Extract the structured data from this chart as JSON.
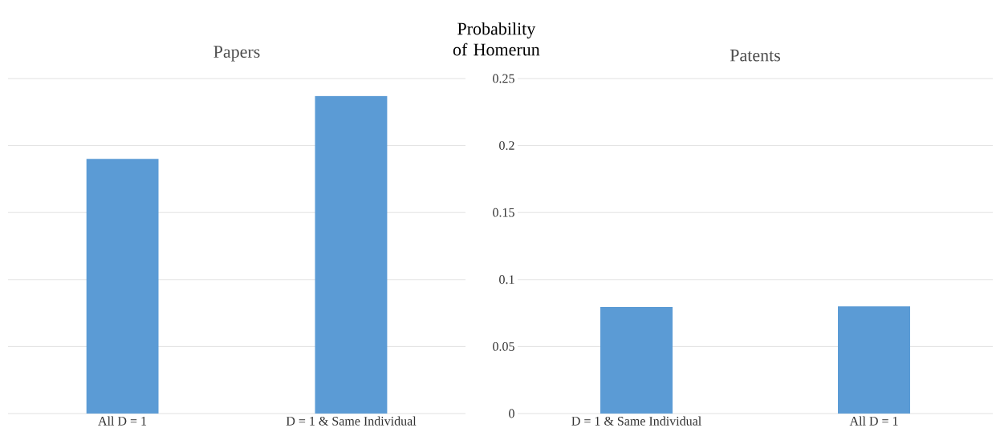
{
  "chart_data": [
    {
      "type": "bar",
      "title": "Papers",
      "categories": [
        "All D = 1",
        "D = 1 & Same Individual"
      ],
      "values": [
        0.19,
        0.237
      ],
      "color": "#5b9bd5",
      "ylim": [
        0,
        0.25
      ],
      "yticks": [
        0,
        0.05,
        0.1,
        0.15,
        0.2,
        0.25
      ],
      "grid": "y",
      "tick_labels": "x"
    },
    {
      "type": "bar",
      "title": "Patents",
      "ylabel": "Probability of Homerun",
      "categories": [
        "D = 1 & Same Individual",
        "All D = 1"
      ],
      "values": [
        0.0795,
        0.08
      ],
      "color": "#5b9bd5",
      "ylim": [
        0,
        0.25
      ],
      "yticks": [
        0,
        0.05,
        0.1,
        0.15,
        0.2,
        0.25
      ],
      "grid": "y"
    }
  ]
}
